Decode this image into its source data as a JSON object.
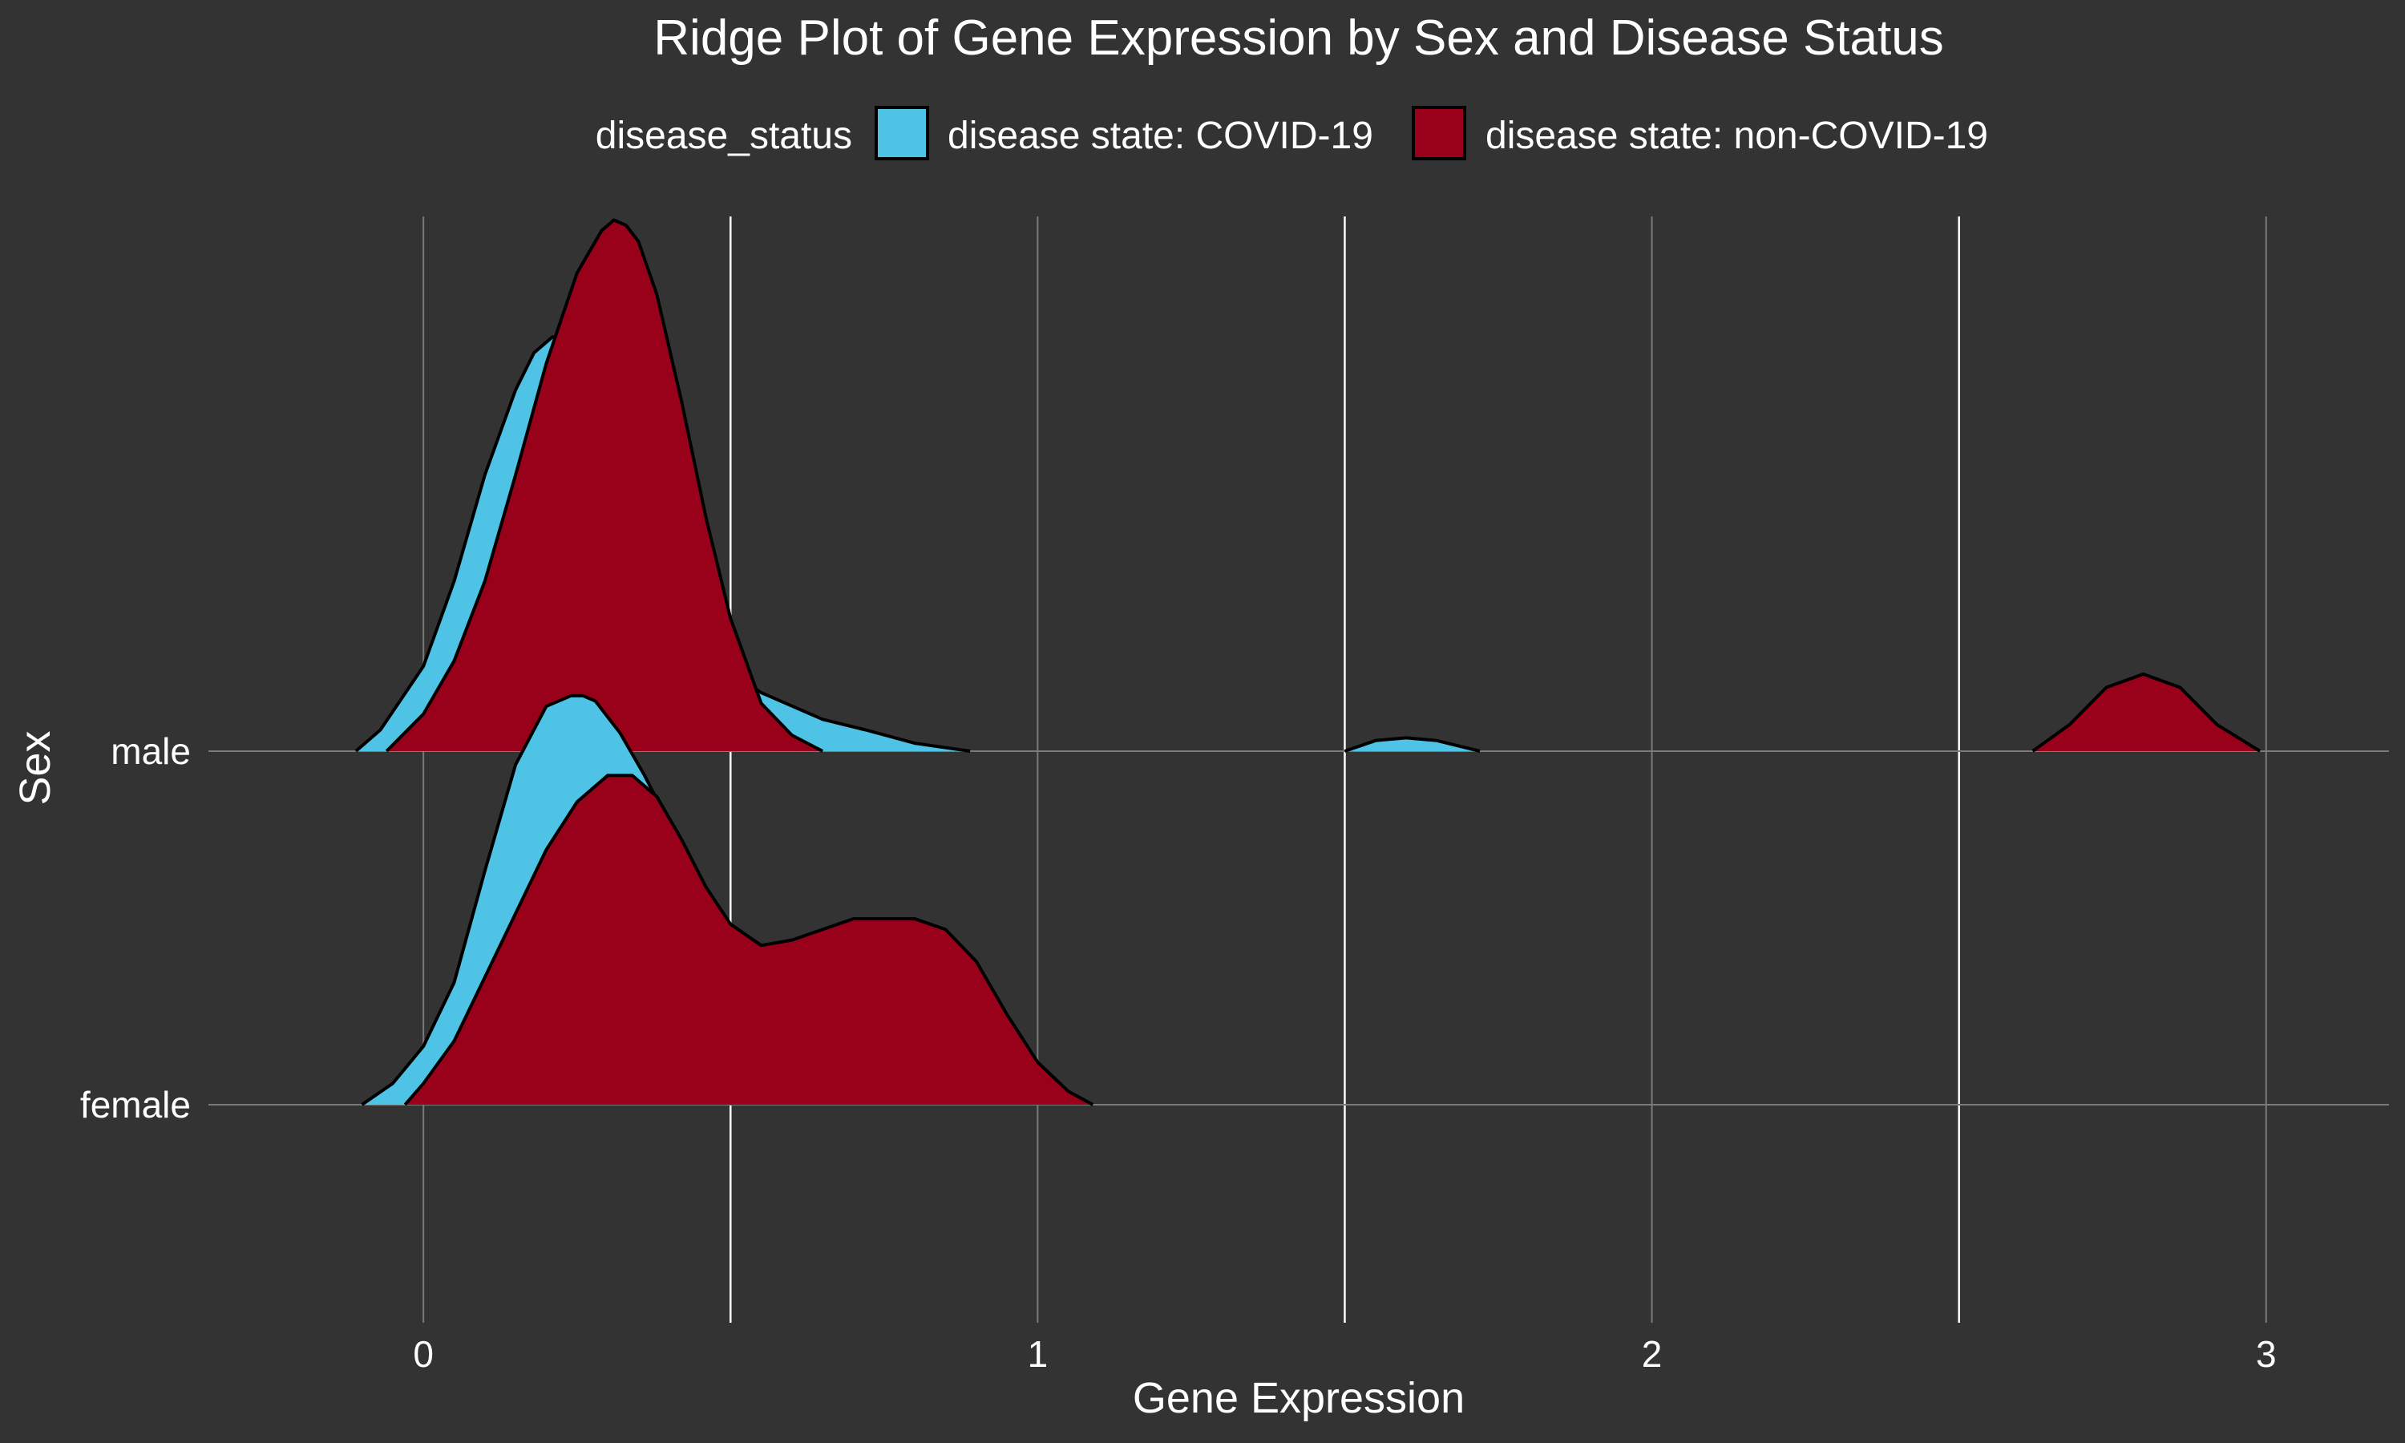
{
  "chart_data": {
    "type": "ridgeline",
    "title": "Ridge Plot of Gene Expression by Sex and Disease Status",
    "xlabel": "Gene Expression",
    "ylabel": "Sex",
    "xlim": [
      -0.35,
      3.2
    ],
    "x_ticks": [
      0,
      1,
      2,
      3
    ],
    "x_tick_labels": [
      "0",
      "1",
      "2",
      "3"
    ],
    "y_categories": [
      "male",
      "female"
    ],
    "grid": true,
    "legend": {
      "title": "disease_status",
      "placement": "top",
      "entries": [
        {
          "label": "disease state: COVID-19",
          "color": "#4FC3E6"
        },
        {
          "label": "disease state: non-COVID-19",
          "color": "#990019"
        }
      ]
    },
    "colors": {
      "background": "#333333",
      "outline": "#000000",
      "grid_major": "#7a7a7a",
      "grid_minor": "#ffffff"
    },
    "density_scale": 5.3,
    "series": [
      {
        "category": "male",
        "status": "COVID-19",
        "color": "#4FC3E6",
        "x": [
          -0.11,
          -0.07,
          0.0,
          0.05,
          0.1,
          0.15,
          0.18,
          0.21,
          0.24,
          0.28,
          0.32,
          0.36,
          0.4,
          0.45,
          0.5,
          0.55,
          0.6,
          0.65,
          0.72,
          0.8,
          0.89
        ],
        "density": [
          0.0,
          0.04,
          0.16,
          0.32,
          0.52,
          0.68,
          0.75,
          0.78,
          0.77,
          0.69,
          0.58,
          0.46,
          0.34,
          0.22,
          0.15,
          0.11,
          0.085,
          0.06,
          0.04,
          0.015,
          0.0
        ]
      },
      {
        "category": "male",
        "status": "COVID-19",
        "color": "#4FC3E6",
        "x": [
          1.5,
          1.55,
          1.6,
          1.65,
          1.72
        ],
        "density": [
          0.0,
          0.02,
          0.025,
          0.02,
          0.0
        ]
      },
      {
        "category": "male",
        "status": "non-COVID-19",
        "color": "#990019",
        "x": [
          -0.06,
          0.0,
          0.05,
          0.1,
          0.15,
          0.2,
          0.25,
          0.29,
          0.31,
          0.33,
          0.35,
          0.38,
          0.42,
          0.46,
          0.5,
          0.55,
          0.6,
          0.65
        ],
        "density": [
          0.0,
          0.07,
          0.17,
          0.32,
          0.52,
          0.73,
          0.9,
          0.98,
          1.0,
          0.99,
          0.96,
          0.86,
          0.66,
          0.44,
          0.25,
          0.09,
          0.03,
          0.0
        ]
      },
      {
        "category": "male",
        "status": "non-COVID-19",
        "color": "#990019",
        "x": [
          2.62,
          2.68,
          2.74,
          2.8,
          2.86,
          2.92,
          2.99
        ],
        "density": [
          0.0,
          0.05,
          0.12,
          0.145,
          0.12,
          0.05,
          0.0
        ]
      },
      {
        "category": "female",
        "status": "COVID-19",
        "color": "#4FC3E6",
        "x": [
          -0.1,
          -0.05,
          0.0,
          0.05,
          0.1,
          0.15,
          0.2,
          0.24,
          0.26,
          0.28,
          0.32,
          0.36,
          0.4,
          0.45,
          0.5,
          0.55,
          0.6
        ],
        "density": [
          0.0,
          0.04,
          0.11,
          0.23,
          0.44,
          0.64,
          0.75,
          0.77,
          0.77,
          0.76,
          0.7,
          0.62,
          0.53,
          0.42,
          0.31,
          0.22,
          0.18
        ],
        "x_tail": [
          0.6
        ],
        "density_tail": [
          0.18
        ]
      },
      {
        "category": "female",
        "status": "non-COVID-19",
        "color": "#990019",
        "x": [
          -0.03,
          0.0,
          0.05,
          0.1,
          0.15,
          0.2,
          0.25,
          0.3,
          0.34,
          0.38,
          0.42,
          0.46,
          0.5,
          0.55,
          0.6,
          0.65,
          0.7,
          0.75,
          0.8,
          0.85,
          0.9,
          0.95,
          1.0,
          1.05,
          1.09
        ],
        "density": [
          0.0,
          0.04,
          0.12,
          0.24,
          0.36,
          0.48,
          0.57,
          0.62,
          0.62,
          0.58,
          0.5,
          0.41,
          0.34,
          0.3,
          0.31,
          0.33,
          0.35,
          0.35,
          0.35,
          0.33,
          0.27,
          0.17,
          0.08,
          0.025,
          0.0
        ]
      }
    ]
  }
}
